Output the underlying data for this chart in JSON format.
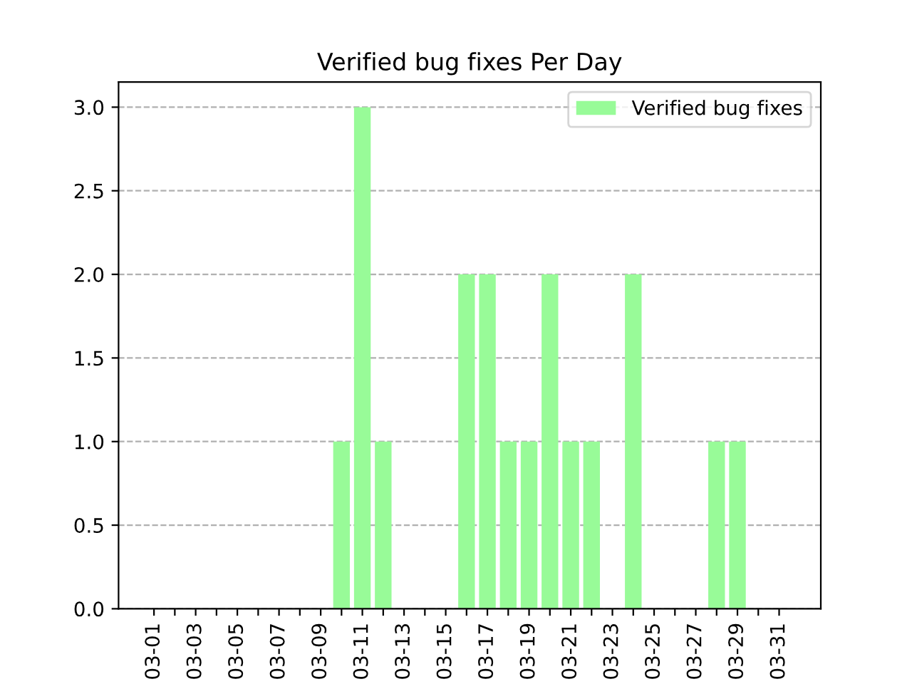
{
  "chart_data": {
    "type": "bar",
    "title": "Verified bug fixes Per Day",
    "categories": [
      "03-01",
      null,
      "03-03",
      null,
      "03-05",
      null,
      "03-07",
      null,
      "03-09",
      null,
      "03-11",
      null,
      "03-13",
      null,
      "03-15",
      null,
      "03-17",
      null,
      "03-19",
      null,
      "03-21",
      null,
      "03-23",
      null,
      "03-25",
      null,
      "03-27",
      null,
      "03-29",
      null,
      "03-31"
    ],
    "series": [
      {
        "name": "Verified bug fixes",
        "color": "#98fb98",
        "values": [
          0,
          0,
          0,
          0,
          0,
          0,
          0,
          0,
          0,
          1,
          3,
          1,
          0,
          0,
          0,
          2,
          2,
          1,
          1,
          2,
          1,
          1,
          0,
          2,
          0,
          0,
          0,
          1,
          1,
          0,
          0
        ]
      }
    ],
    "ylim": [
      0,
      3.15
    ],
    "yticks": [
      {
        "value": 0,
        "label": "0.0"
      },
      {
        "value": 0.5,
        "label": "0.5"
      },
      {
        "value": 1,
        "label": "1.0"
      },
      {
        "value": 1.5,
        "label": "1.5"
      },
      {
        "value": 2,
        "label": "2.0"
      },
      {
        "value": 2.5,
        "label": "2.5"
      },
      {
        "value": 3,
        "label": "3.0"
      }
    ],
    "grid": "y",
    "legend": "upper right"
  }
}
